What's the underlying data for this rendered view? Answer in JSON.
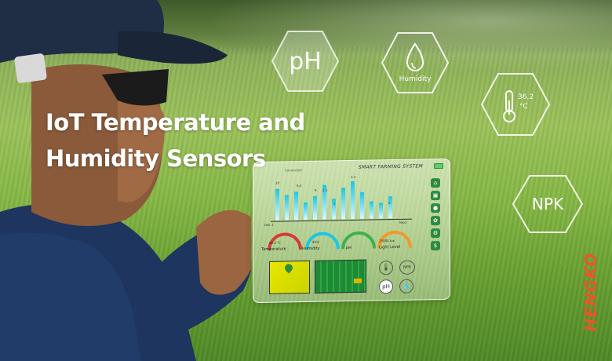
{
  "headline": {
    "line1": "IoT Temperature and",
    "line2": "Humidity Sensors"
  },
  "floating_icons": {
    "ph_label": "pH",
    "humidity_label": "Humidity",
    "temperature_value": "36.2",
    "temperature_unit": "°C",
    "npk_label": "NPK"
  },
  "tablet": {
    "title": "SMART FARMING SYSTEM",
    "subtitle": "Connected",
    "chart_values": [
      "10",
      "8.4",
      "8",
      "2.1",
      "5",
      "2.2",
      "6"
    ],
    "x_axis_start": "Dec 1",
    "x_axis_end": "Next",
    "gauge_labels": [
      "Temperature",
      "Humidity",
      "pH",
      "Light Level"
    ],
    "gauge_values": [
      "26.2 °C",
      "45%",
      "",
      "25000 lux"
    ],
    "chips": [
      "NPK",
      "pH"
    ]
  },
  "brand": {
    "name": "HENGKO"
  },
  "colors": {
    "brand_orange": "#e8562a",
    "accent_cyan": "#1bc6e4",
    "field_green": "#7fb345"
  }
}
